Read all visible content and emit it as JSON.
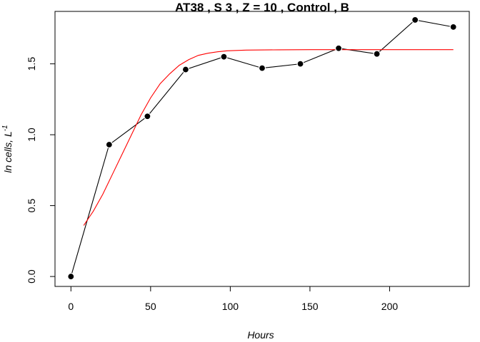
{
  "chart_data": {
    "type": "line",
    "title": "AT38 , S 3 , Z = 10 , Control , B",
    "xlabel": "Hours",
    "ylabel": "ln cells, L",
    "ylabel_superscript": "-1",
    "xlim": [
      -10,
      250
    ],
    "ylim": [
      -0.07,
      1.87
    ],
    "x_ticks": [
      0,
      50,
      100,
      150,
      200
    ],
    "y_ticks": [
      0.0,
      0.5,
      1.0,
      1.5
    ],
    "x_tick_labels": [
      "0",
      "50",
      "100",
      "150",
      "200"
    ],
    "y_tick_labels": [
      "0.0",
      "0.5",
      "1.0",
      "1.5"
    ],
    "grid": false,
    "legend": "none",
    "series": [
      {
        "kind": "observed",
        "color": "#000000",
        "marker": "filled-circle",
        "x": [
          0,
          24,
          48,
          72,
          96,
          120,
          144,
          168,
          192,
          216,
          240
        ],
        "y": [
          0.0,
          0.93,
          1.13,
          1.46,
          1.55,
          1.47,
          1.5,
          1.61,
          1.57,
          1.81,
          1.76
        ]
      },
      {
        "kind": "fitted",
        "color": "#ff0000",
        "marker": "none",
        "x": [
          8,
          14,
          20,
          26,
          32,
          38,
          44,
          50,
          56,
          62,
          68,
          74,
          80,
          86,
          92,
          98,
          110,
          130,
          150,
          170,
          200,
          240
        ],
        "y": [
          0.36,
          0.46,
          0.58,
          0.72,
          0.86,
          1.0,
          1.14,
          1.26,
          1.36,
          1.43,
          1.49,
          1.53,
          1.56,
          1.575,
          1.585,
          1.592,
          1.597,
          1.599,
          1.6,
          1.6,
          1.6,
          1.6
        ]
      }
    ]
  }
}
